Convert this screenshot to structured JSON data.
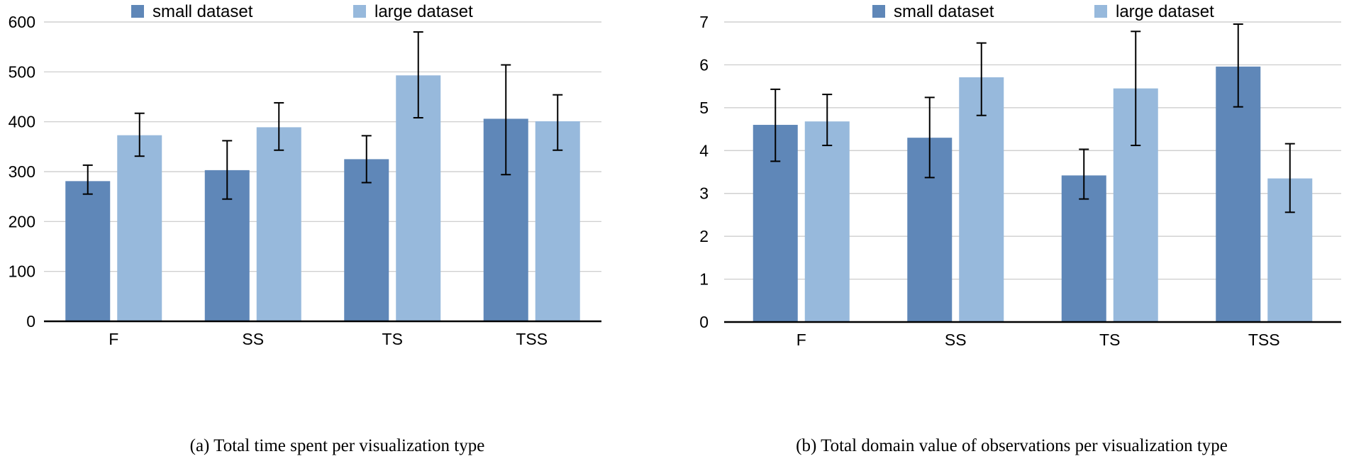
{
  "chart_data": [
    {
      "type": "bar",
      "caption": "(a) Total time spent per visualization type",
      "categories": [
        "F",
        "SS",
        "TS",
        "TSS"
      ],
      "series": [
        {
          "name": "small dataset",
          "color": "#5f87b8",
          "values": [
            281,
            303,
            325,
            406
          ],
          "error_low": [
            255,
            245,
            278,
            294
          ],
          "error_high": [
            313,
            362,
            372,
            514
          ]
        },
        {
          "name": "large dataset",
          "color": "#97b9dc",
          "values": [
            373,
            389,
            493,
            401
          ],
          "error_low": [
            331,
            343,
            408,
            343
          ],
          "error_high": [
            417,
            438,
            580,
            454
          ]
        }
      ],
      "ylim": [
        0,
        600
      ],
      "yticks": [
        0,
        100,
        200,
        300,
        400,
        500,
        600
      ],
      "grid": true,
      "legend": "top-center"
    },
    {
      "type": "bar",
      "caption": "(b) Total domain value of observations per visualization type",
      "categories": [
        "F",
        "SS",
        "TS",
        "TSS"
      ],
      "series": [
        {
          "name": "small dataset",
          "color": "#5f87b8",
          "values": [
            4.6,
            4.3,
            3.42,
            5.96
          ],
          "error_low": [
            3.75,
            3.37,
            2.87,
            5.02
          ],
          "error_high": [
            5.43,
            5.24,
            4.03,
            6.95
          ]
        },
        {
          "name": "large dataset",
          "color": "#97b9dc",
          "values": [
            4.68,
            5.71,
            5.45,
            3.35
          ],
          "error_low": [
            4.12,
            4.82,
            4.12,
            2.56
          ],
          "error_high": [
            5.31,
            6.51,
            6.78,
            4.16
          ]
        }
      ],
      "ylim": [
        0,
        7
      ],
      "yticks": [
        0,
        1,
        2,
        3,
        4,
        5,
        6,
        7
      ],
      "grid": true,
      "legend": "top-center"
    }
  ]
}
